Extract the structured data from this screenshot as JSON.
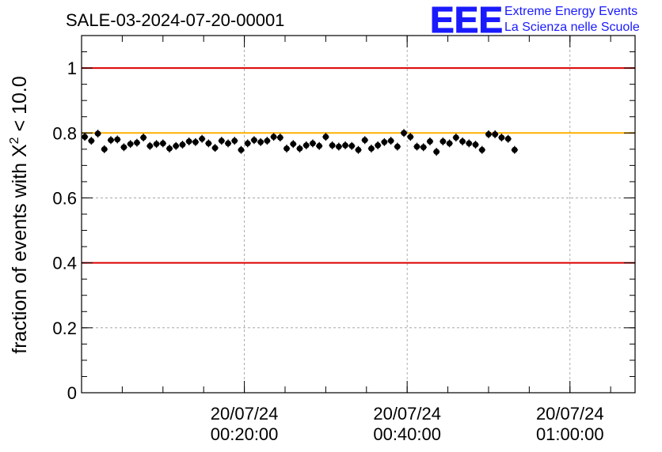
{
  "chart_data": {
    "type": "scatter",
    "title": "SALE-03-2024-07-20-00001",
    "ylabel_prefix": "fraction of events with ",
    "ylabel_symbol": "Χ",
    "ylabel_sup": "2",
    "ylabel_suffix": " < 10.0",
    "xlabel": "",
    "ylim": [
      0,
      1.1
    ],
    "xlim_minutes": [
      0,
      68
    ],
    "y_ticks": [
      {
        "value": 0,
        "label": "0"
      },
      {
        "value": 0.2,
        "label": "0.2"
      },
      {
        "value": 0.4,
        "label": "0.4"
      },
      {
        "value": 0.6,
        "label": "0.6"
      },
      {
        "value": 0.8,
        "label": "0.8"
      },
      {
        "value": 1.0,
        "label": "1"
      }
    ],
    "x_ticks": [
      {
        "minutes": 20,
        "date": "20/07/24",
        "time": "00:20:00"
      },
      {
        "minutes": 40,
        "date": "20/07/24",
        "time": "00:40:00"
      },
      {
        "minutes": 60,
        "date": "20/07/24",
        "time": "01:00:00"
      }
    ],
    "x_minor_step_minutes": 5,
    "grid": true,
    "reference_lines": [
      {
        "value": 1.0,
        "color": "#dd0000"
      },
      {
        "value": 0.8,
        "color": "#ffb000"
      },
      {
        "value": 0.4,
        "color": "#dd0000"
      }
    ],
    "series": [
      {
        "name": "fraction",
        "marker_color": "#000000",
        "bin_width_minutes": 0.8,
        "error": 0.012,
        "values": [
          0.788,
          0.776,
          0.798,
          0.75,
          0.778,
          0.78,
          0.756,
          0.766,
          0.77,
          0.786,
          0.76,
          0.766,
          0.768,
          0.752,
          0.76,
          0.764,
          0.774,
          0.772,
          0.782,
          0.768,
          0.754,
          0.776,
          0.768,
          0.776,
          0.748,
          0.768,
          0.778,
          0.772,
          0.776,
          0.788,
          0.786,
          0.752,
          0.766,
          0.752,
          0.762,
          0.768,
          0.76,
          0.788,
          0.762,
          0.758,
          0.762,
          0.76,
          0.748,
          0.778,
          0.752,
          0.762,
          0.772,
          0.776,
          0.758,
          0.8,
          0.788,
          0.758,
          0.756,
          0.774,
          0.742,
          0.774,
          0.768,
          0.786,
          0.774,
          0.768,
          0.764,
          0.748,
          0.796,
          0.796,
          0.786,
          0.782,
          0.748
        ]
      }
    ]
  },
  "logo": {
    "text": "EEE",
    "line1": "Extreme Energy Events",
    "line2": "La Scienza nelle Scuole",
    "color": "#1a1aff"
  }
}
